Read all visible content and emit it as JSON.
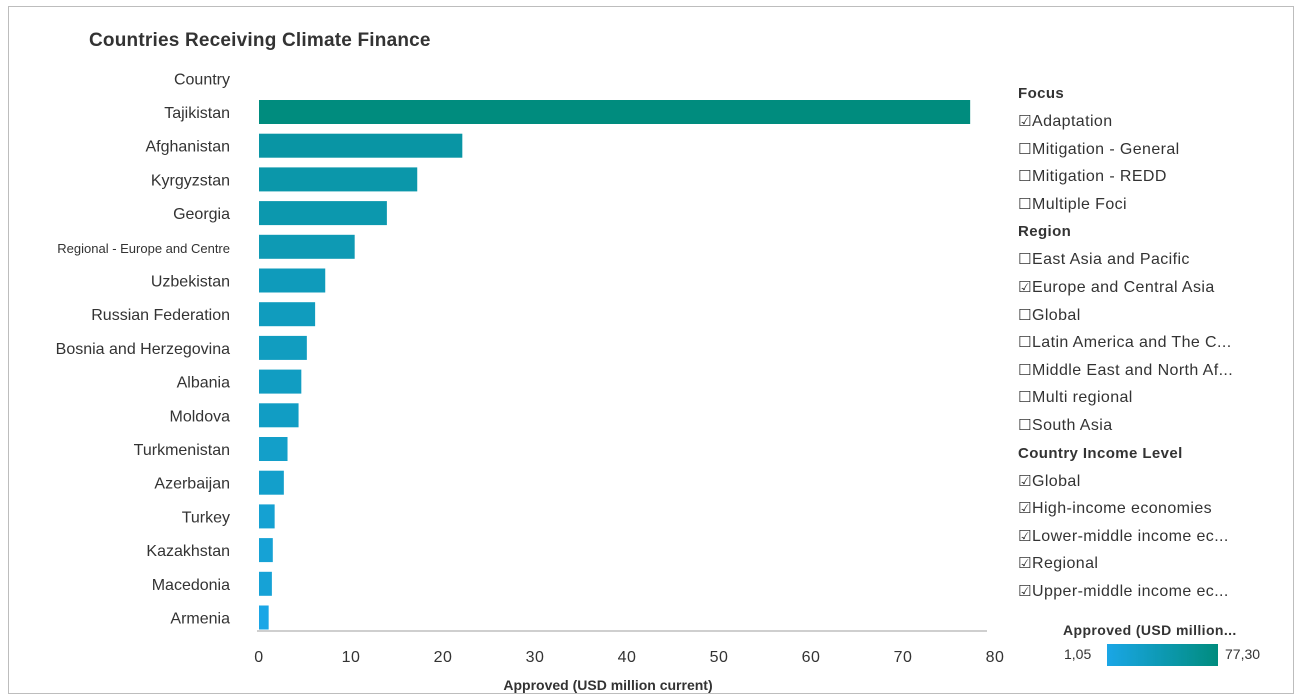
{
  "chart_data": {
    "type": "bar",
    "orientation": "horizontal",
    "title": "Countries Receiving Climate Finance",
    "category_header": "Country",
    "xlabel": "Approved (USD million current)",
    "ylabel": "",
    "xlim": [
      0,
      80
    ],
    "xticks": [
      "0",
      "10",
      "20",
      "30",
      "40",
      "50",
      "60",
      "70",
      "80"
    ],
    "grid": false,
    "categories": [
      "Tajikistan",
      "Afghanistan",
      "Kyrgyzstan",
      "Georgia",
      "Regional - Europe and Centre",
      "Uzbekistan",
      "Russian Federation",
      "Bosnia and Herzegovina",
      "Albania",
      "Moldova",
      "Turkmenistan",
      "Azerbaijan",
      "Turkey",
      "Kazakhstan",
      "Macedonia",
      "Armenia"
    ],
    "values": [
      77.3,
      22.1,
      17.2,
      13.9,
      10.4,
      7.2,
      6.1,
      5.2,
      4.6,
      4.3,
      3.1,
      2.7,
      1.7,
      1.5,
      1.4,
      1.05
    ],
    "color_legend": {
      "title": "Approved (USD million...",
      "min_label": "1,05",
      "max_label": "77,30",
      "min_color": "#1aa6e6",
      "max_color": "#008c7e"
    }
  },
  "filters": [
    {
      "heading": "Focus",
      "items": [
        {
          "label": "Adaptation",
          "checked": true
        },
        {
          "label": "Mitigation - General",
          "checked": false
        },
        {
          "label": "Mitigation - REDD",
          "checked": false
        },
        {
          "label": "Multiple Foci",
          "checked": false
        }
      ]
    },
    {
      "heading": "Region",
      "items": [
        {
          "label": "East Asia and Pacific",
          "checked": false
        },
        {
          "label": "Europe and Central Asia",
          "checked": true
        },
        {
          "label": "Global",
          "checked": false
        },
        {
          "label": "Latin America and The C...",
          "checked": false
        },
        {
          "label": "Middle East and North Af...",
          "checked": false
        },
        {
          "label": "Multi regional",
          "checked": false
        },
        {
          "label": "South Asia",
          "checked": false
        }
      ]
    },
    {
      "heading": "Country Income Level",
      "items": [
        {
          "label": "Global",
          "checked": true
        },
        {
          "label": "High-income economies",
          "checked": true
        },
        {
          "label": "Lower-middle income ec...",
          "checked": true
        },
        {
          "label": "Regional",
          "checked": true
        },
        {
          "label": "Upper-middle income ec...",
          "checked": true
        }
      ]
    }
  ],
  "glyphs": {
    "checked": "☑",
    "unchecked": "☐"
  },
  "colors": {
    "bar_low": "#1aa6e6",
    "bar_high": "#008c7e",
    "axis_line": "#cfcfcf"
  }
}
